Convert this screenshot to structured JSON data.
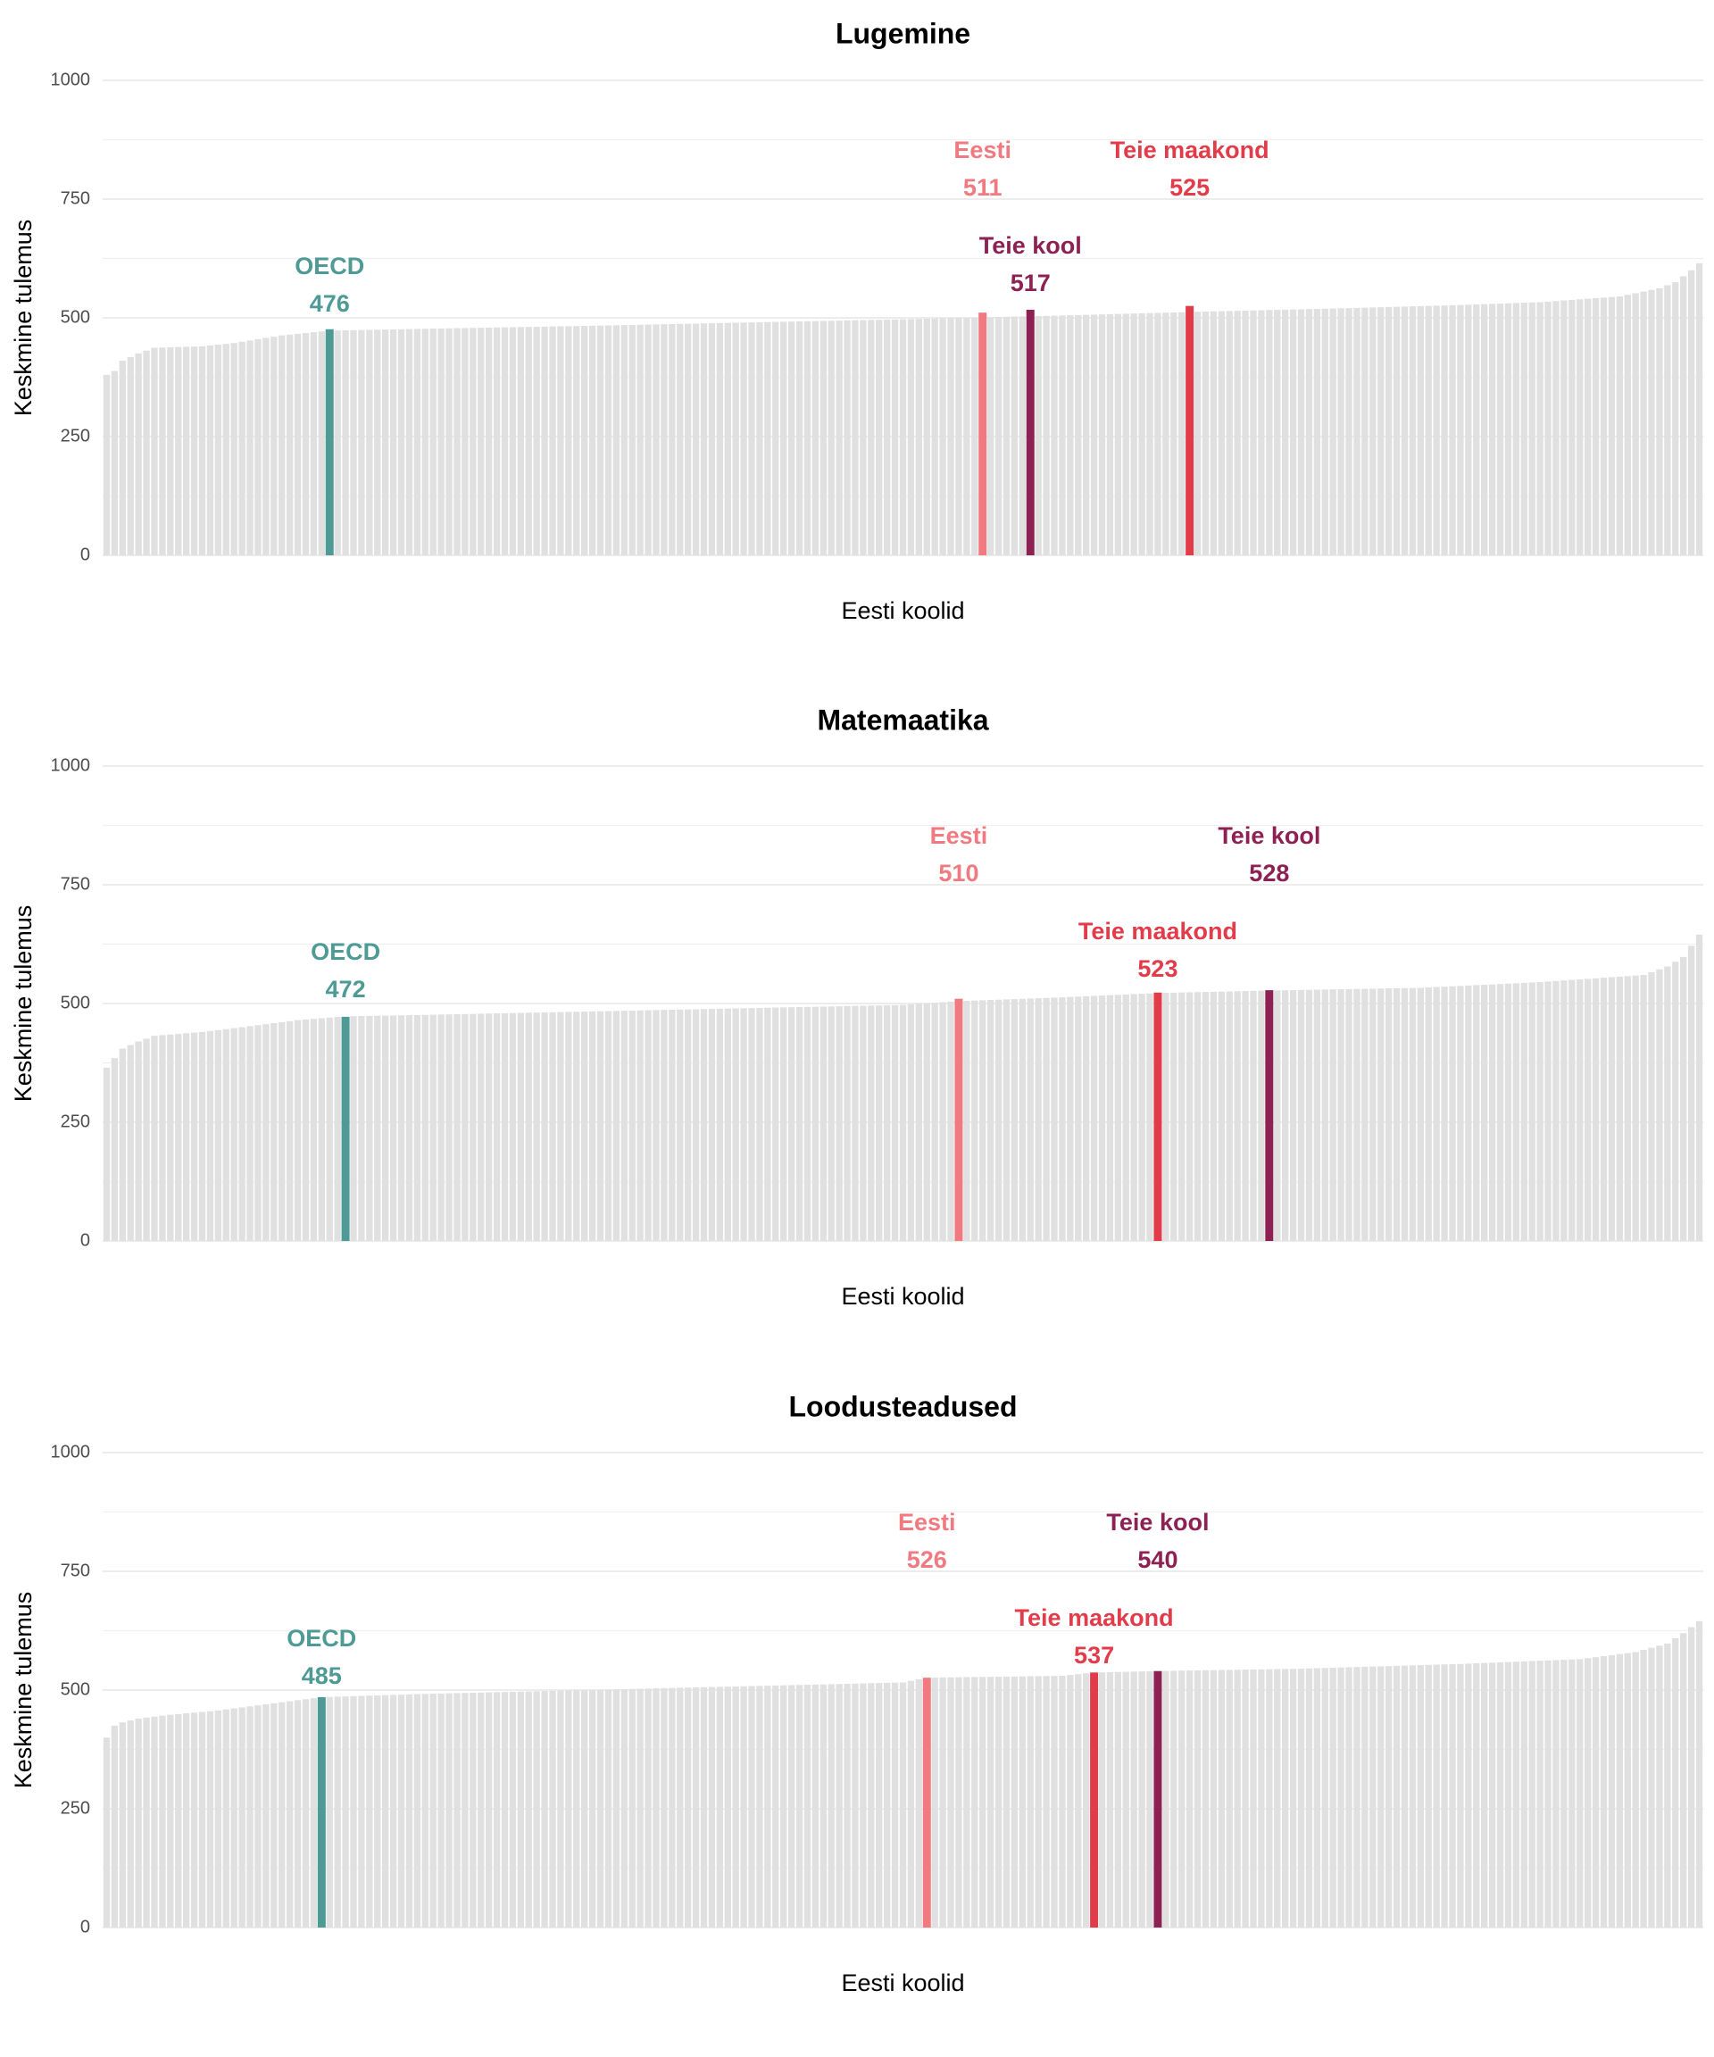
{
  "chart_data": [
    {
      "type": "bar",
      "title": "Lugemine",
      "xlabel": "Eesti koolid",
      "ylabel": "Keskmine tulemus",
      "ylim": [
        0,
        1000
      ],
      "yticks": [
        0,
        250,
        500,
        750,
        1000
      ],
      "n_schools": 201,
      "school_profile": [
        [
          0,
          380
        ],
        [
          1,
          388
        ],
        [
          2,
          410
        ],
        [
          4,
          425
        ],
        [
          6,
          437
        ],
        [
          12,
          440
        ],
        [
          16,
          447
        ],
        [
          22,
          463
        ],
        [
          28,
          473
        ],
        [
          40,
          477
        ],
        [
          60,
          483
        ],
        [
          80,
          490
        ],
        [
          100,
          497
        ],
        [
          120,
          505
        ],
        [
          140,
          514
        ],
        [
          155,
          520
        ],
        [
          170,
          527
        ],
        [
          180,
          533
        ],
        [
          190,
          545
        ],
        [
          195,
          562
        ],
        [
          197,
          575
        ],
        [
          199,
          600
        ],
        [
          200,
          615
        ]
      ],
      "highlights": [
        {
          "name": "OECD",
          "value": 476,
          "rank": 28,
          "color": "#4e9a94",
          "label_row": 2
        },
        {
          "name": "Eesti",
          "value": 511,
          "rank": 110,
          "color": "#f07a80",
          "label_row": 0
        },
        {
          "name": "Teie kool",
          "value": 517,
          "rank": 116,
          "color": "#8e2154",
          "label_row": 1
        },
        {
          "name": "Teie maakond",
          "value": 525,
          "rank": 136,
          "color": "#e23c4a",
          "label_row": 0
        }
      ]
    },
    {
      "type": "bar",
      "title": "Matemaatika",
      "xlabel": "Eesti koolid",
      "ylabel": "Keskmine tulemus",
      "ylim": [
        0,
        1000
      ],
      "yticks": [
        0,
        250,
        500,
        750,
        1000
      ],
      "n_schools": 201,
      "school_profile": [
        [
          0,
          365
        ],
        [
          1,
          385
        ],
        [
          2,
          405
        ],
        [
          4,
          420
        ],
        [
          6,
          432
        ],
        [
          12,
          440
        ],
        [
          16,
          448
        ],
        [
          24,
          465
        ],
        [
          30,
          473
        ],
        [
          40,
          476
        ],
        [
          60,
          483
        ],
        [
          80,
          490
        ],
        [
          100,
          497
        ],
        [
          107,
          505
        ],
        [
          120,
          513
        ],
        [
          132,
          522
        ],
        [
          145,
          527
        ],
        [
          165,
          533
        ],
        [
          180,
          545
        ],
        [
          193,
          560
        ],
        [
          196,
          578
        ],
        [
          198,
          598
        ],
        [
          200,
          645
        ]
      ],
      "highlights": [
        {
          "name": "OECD",
          "value": 472,
          "rank": 30,
          "color": "#4e9a94",
          "label_row": 2
        },
        {
          "name": "Eesti",
          "value": 510,
          "rank": 107,
          "color": "#f07a80",
          "label_row": 0
        },
        {
          "name": "Teie maakond",
          "value": 523,
          "rank": 132,
          "color": "#e23c4a",
          "label_row": 1
        },
        {
          "name": "Teie kool",
          "value": 528,
          "rank": 146,
          "color": "#8e2154",
          "label_row": 0
        }
      ]
    },
    {
      "type": "bar",
      "title": "Loodusteadused",
      "xlabel": "Eesti koolid",
      "ylabel": "Keskmine tulemus",
      "ylim": [
        0,
        1000
      ],
      "yticks": [
        0,
        250,
        500,
        750,
        1000
      ],
      "n_schools": 201,
      "school_profile": [
        [
          0,
          400
        ],
        [
          1,
          425
        ],
        [
          2,
          432
        ],
        [
          4,
          440
        ],
        [
          8,
          448
        ],
        [
          14,
          457
        ],
        [
          20,
          470
        ],
        [
          27,
          485
        ],
        [
          40,
          492
        ],
        [
          60,
          500
        ],
        [
          80,
          508
        ],
        [
          100,
          516
        ],
        [
          103,
          526
        ],
        [
          120,
          530
        ],
        [
          124,
          537
        ],
        [
          132,
          540
        ],
        [
          150,
          545
        ],
        [
          170,
          555
        ],
        [
          185,
          565
        ],
        [
          192,
          580
        ],
        [
          196,
          598
        ],
        [
          198,
          620
        ],
        [
          200,
          645
        ]
      ],
      "highlights": [
        {
          "name": "OECD",
          "value": 485,
          "rank": 27,
          "color": "#4e9a94",
          "label_row": 2
        },
        {
          "name": "Eesti",
          "value": 526,
          "rank": 103,
          "color": "#f07a80",
          "label_row": 0
        },
        {
          "name": "Teie maakond",
          "value": 537,
          "rank": 124,
          "color": "#e23c4a",
          "label_row": 1
        },
        {
          "name": "Teie kool",
          "value": 540,
          "rank": 132,
          "color": "#8e2154",
          "label_row": 0
        }
      ]
    }
  ],
  "colors": {
    "school_bar": "#e0e0e0"
  }
}
